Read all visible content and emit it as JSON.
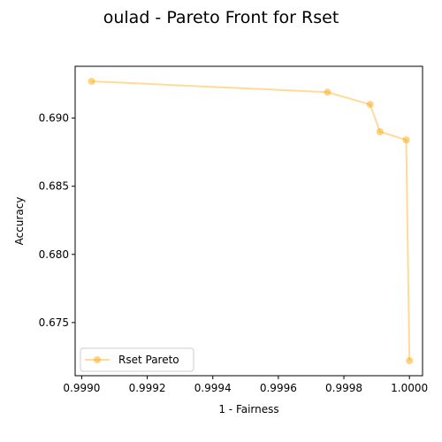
{
  "chart_data": {
    "type": "line",
    "title": "oulad - Pareto Front for Rset",
    "xlabel": "1 - Fairness",
    "ylabel": "Accuracy",
    "xlim": [
      0.99898,
      1.00004
    ],
    "ylim": [
      0.6711,
      0.6938
    ],
    "xticks": [
      0.999,
      0.9992,
      0.9994,
      0.9996,
      0.9998,
      1.0
    ],
    "xtick_labels": [
      "0.9990",
      "0.9992",
      "0.9994",
      "0.9996",
      "0.9998",
      "1.0000"
    ],
    "yticks": [
      0.675,
      0.68,
      0.685,
      0.69
    ],
    "ytick_labels": [
      "0.675",
      "0.680",
      "0.685",
      "0.690"
    ],
    "grid": false,
    "legend_position": "lower-left",
    "series": [
      {
        "name": "Rset Pareto",
        "color": "#ffa500",
        "marker": "circle",
        "x": [
          0.99903,
          0.99975,
          0.99988,
          0.99991,
          0.99999,
          1.0
        ],
        "y": [
          0.6927,
          0.6919,
          0.691,
          0.689,
          0.6884,
          0.6722
        ]
      }
    ]
  }
}
